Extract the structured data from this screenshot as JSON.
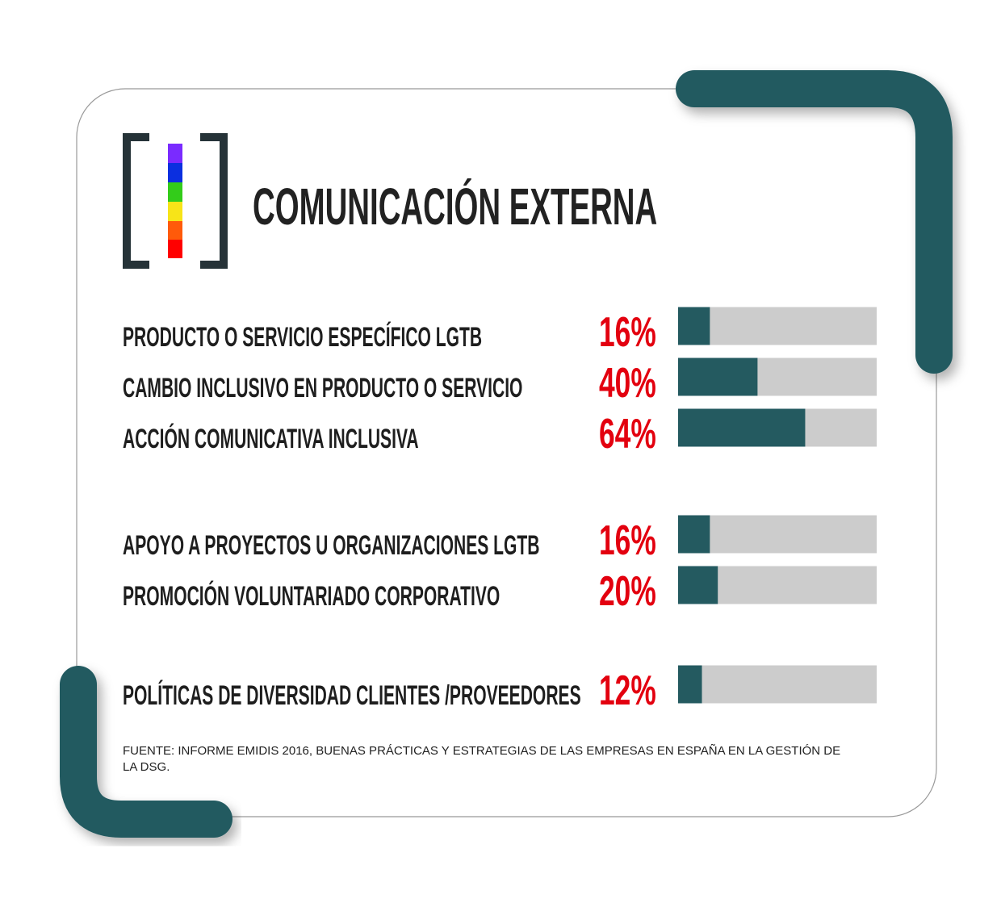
{
  "chart_data": {
    "type": "bar",
    "orientation": "horizontal",
    "title": "COMUNICACIÓN EXTERNA",
    "categories": [
      "PRODUCTO O SERVICIO ESPECÍFICO LGTB",
      "CAMBIO INCLUSIVO EN PRODUCTO O SERVICIO",
      "ACCIÓN COMUNICATIVA INCLUSIVA",
      "APOYO A PROYECTOS U ORGANIZACIONES LGTB",
      "PROMOCIÓN VOLUNTARIADO CORPORATIVO",
      "POLÍTICAS DE DIVERSIDAD CLIENTES /PROVEEDORES"
    ],
    "values": [
      16,
      40,
      64,
      16,
      20,
      12
    ],
    "value_labels": [
      "16%",
      "40%",
      "64%",
      "16%",
      "20%",
      "12%"
    ],
    "xlim": [
      0,
      100
    ],
    "color": "#245a60",
    "track_color": "#cccccc",
    "label_color": "#e3000f",
    "source": "FUENTE: INFORME EMIDIS 2016, BUENAS  PRÁCTICAS Y ESTRATEGIAS DE LAS EMPRESAS EN ESPAÑA EN LA GESTIÓN DE LA DSG."
  }
}
